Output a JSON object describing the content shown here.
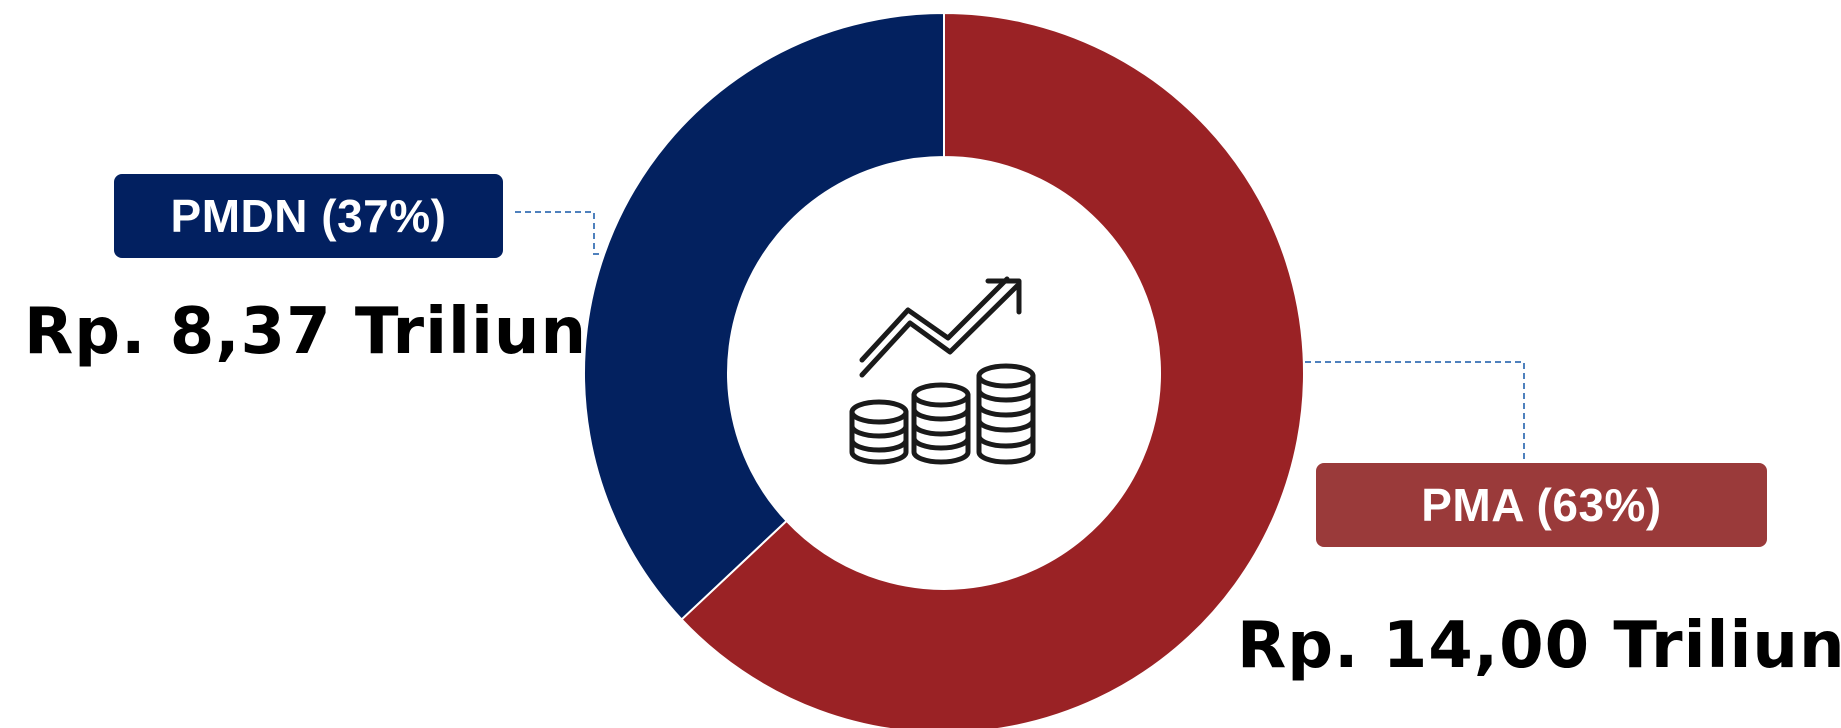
{
  "chart_data": {
    "type": "pie",
    "title": "",
    "slices": [
      {
        "label": "PMA",
        "percent": 63,
        "amount": "Rp. 14,00 Triliun",
        "color": "#9a2225"
      },
      {
        "label": "PMDN",
        "percent": 37,
        "amount": "Rp. 8,37 Triliun",
        "color": "#03215f"
      }
    ],
    "donut": true,
    "center_icon": "investment-growth-icon"
  },
  "labels": {
    "pmdn": "PMDN (37%)",
    "pma": "PMA (63%)"
  },
  "amounts": {
    "pmdn": "Rp. 8,37 Triliun",
    "pma": "Rp. 14,00 Triliun"
  },
  "colors": {
    "pmdn_box": "#022060",
    "pma_box": "#9a3a3a",
    "leader_line": "#4f81bd"
  }
}
